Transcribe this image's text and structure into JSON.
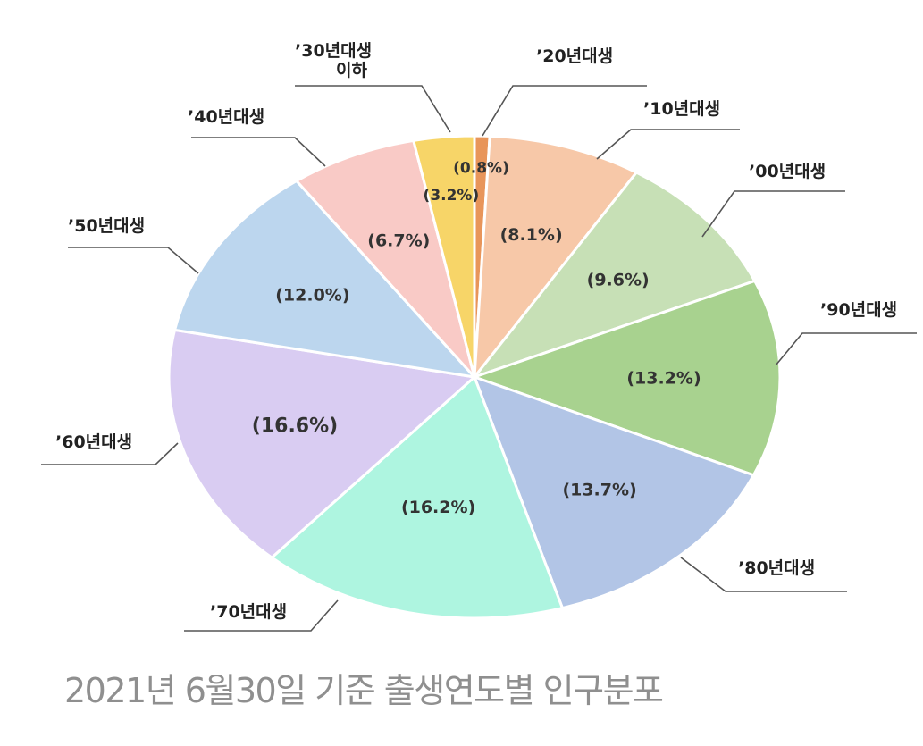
{
  "caption": "2021년 6월30일 기준 출생연도별 인구분포",
  "chart_data": {
    "type": "pie",
    "start_angle_deg": 0,
    "direction": "clockwise",
    "legend": "leader-line labels around pie",
    "slices": [
      {
        "label": "’20년대생",
        "value": 0.8,
        "value_label": "(0.8%)",
        "color": "#e8955a"
      },
      {
        "label": "’10년대생",
        "value": 8.1,
        "value_label": "(8.1%)",
        "color": "#f7c8a8"
      },
      {
        "label": "’00년대생",
        "value": 9.6,
        "value_label": "(9.6%)",
        "color": "#c7e0b6"
      },
      {
        "label": "’90년대생",
        "value": 13.2,
        "value_label": "(13.2%)",
        "color": "#a8d28f"
      },
      {
        "label": "’80년대생",
        "value": 13.7,
        "value_label": "(13.7%)",
        "color": "#b2c5e6"
      },
      {
        "label": "’70년대생",
        "value": 16.2,
        "value_label": "(16.2%)",
        "color": "#aef5e0"
      },
      {
        "label": "’60년대생",
        "value": 16.6,
        "value_label": "(16.6%)",
        "color": "#d9ccf2"
      },
      {
        "label": "’50년대생",
        "value": 12.0,
        "value_label": "(12.0%)",
        "color": "#bcd6ee"
      },
      {
        "label": "’40년대생",
        "value": 6.7,
        "value_label": "(6.7%)",
        "color": "#f9cac6"
      },
      {
        "label": "’30년대생\n이하",
        "value": 3.2,
        "value_label": "(3.2%)",
        "color": "#f7d568"
      }
    ]
  }
}
